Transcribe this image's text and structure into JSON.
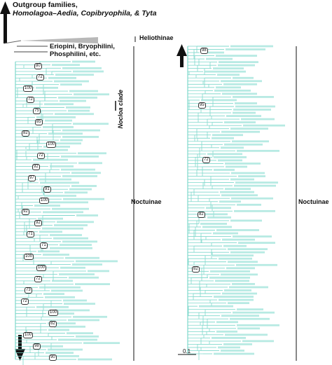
{
  "header": {
    "line1": "Outgroup families,",
    "line2": "Homolagoa–Aedia, Copibryophila, & Tyta"
  },
  "groups": {
    "heliothinae": "Heliothinae",
    "eriopini_line1": "Eriopini, Bryophilini,",
    "eriopini_line2": "Phosphilini, etc.",
    "nocloa": "Nocloa clade",
    "noctuinae_left": "Noctuinae",
    "noctuinae_right": "Noctuinae"
  },
  "scale_bar": {
    "label": "0.1"
  },
  "support_values": {
    "left": [
      "80",
      "72",
      "100",
      "72",
      "75",
      "85",
      "82",
      "100",
      "72",
      "92",
      "97",
      "91",
      "100",
      "92",
      "92",
      "71",
      "71",
      "100",
      "100",
      "72",
      "73",
      "72",
      "100",
      "82",
      "100",
      "98",
      "90"
    ],
    "right": [
      "98",
      "95",
      "72",
      "82",
      "82"
    ]
  },
  "colors": {
    "branch": "#7fd8cc",
    "tip_text": "#9fe3da",
    "ink": "#111111",
    "outgroup_fill": "#b8b8b8"
  }
}
